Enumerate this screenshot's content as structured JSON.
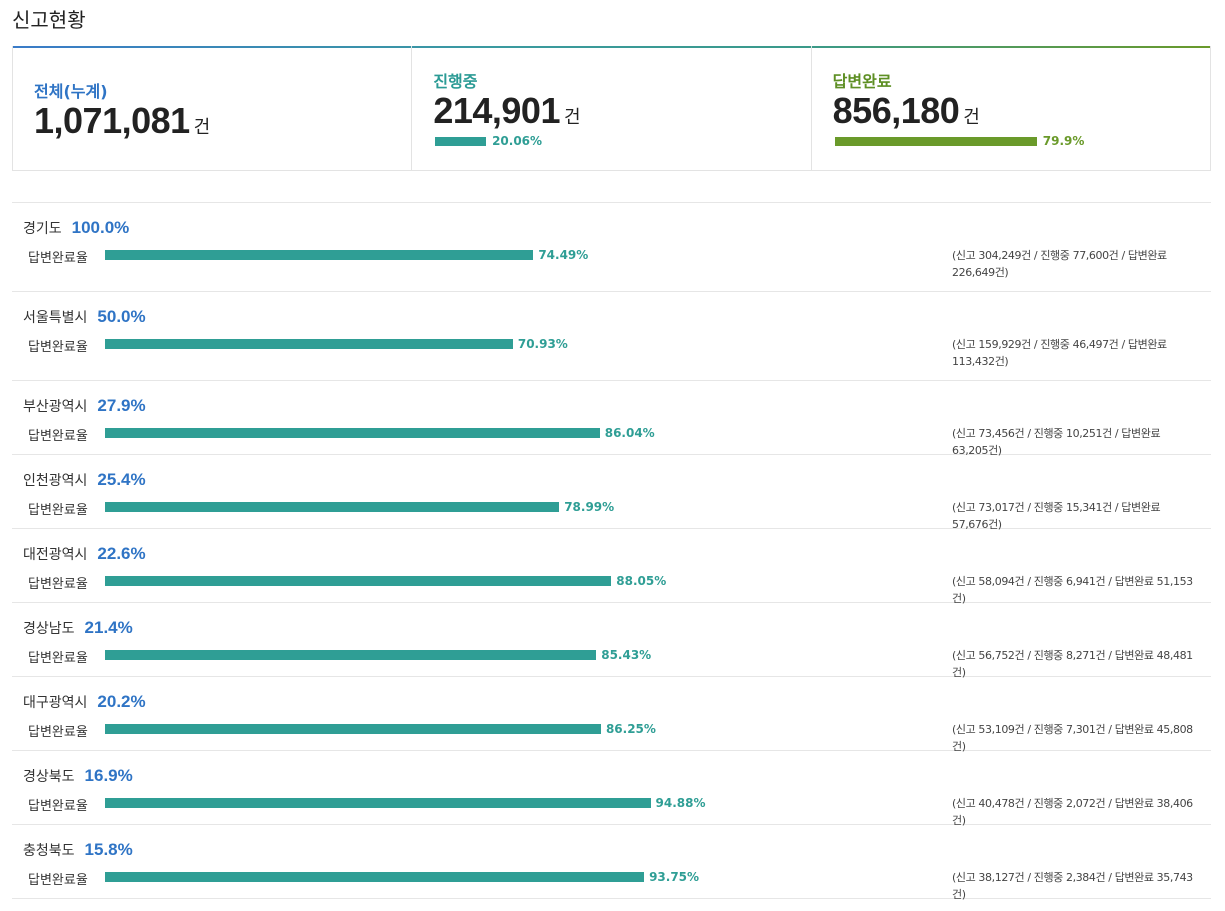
{
  "page_title": "신고현황",
  "summary": {
    "total": {
      "label": "전체(누계)",
      "value": "1,071,081",
      "unit": "건"
    },
    "in_progress": {
      "label": "진행중",
      "value": "214,901",
      "unit": "건",
      "percent_label": "20.06%",
      "percent": 20.06,
      "color": "#2f9e95"
    },
    "completed": {
      "label": "답변완료",
      "value": "856,180",
      "unit": "건",
      "percent_label": "79.9%",
      "percent": 79.9,
      "color": "#6a9a2a"
    }
  },
  "rate_label": "답변완료율",
  "regions": [
    {
      "name": "경기도",
      "share": "100.0%",
      "rate": 74.49,
      "rate_label": "74.49%",
      "detail": "(신고 304,249건 / 진행중 77,600건 / 답변완료 226,649건)"
    },
    {
      "name": "서울특별시",
      "share": "50.0%",
      "rate": 70.93,
      "rate_label": "70.93%",
      "detail": "(신고 159,929건 / 진행중 46,497건 / 답변완료 113,432건)"
    },
    {
      "name": "부산광역시",
      "share": "27.9%",
      "rate": 86.04,
      "rate_label": "86.04%",
      "detail": "(신고 73,456건 / 진행중 10,251건 / 답변완료 63,205건)"
    },
    {
      "name": "인천광역시",
      "share": "25.4%",
      "rate": 78.99,
      "rate_label": "78.99%",
      "detail": "(신고 73,017건 / 진행중 15,341건 / 답변완료 57,676건)"
    },
    {
      "name": "대전광역시",
      "share": "22.6%",
      "rate": 88.05,
      "rate_label": "88.05%",
      "detail": "(신고 58,094건 / 진행중 6,941건 / 답변완료 51,153건)"
    },
    {
      "name": "경상남도",
      "share": "21.4%",
      "rate": 85.43,
      "rate_label": "85.43%",
      "detail": "(신고 56,752건 / 진행중 8,271건 / 답변완료 48,481건)"
    },
    {
      "name": "대구광역시",
      "share": "20.2%",
      "rate": 86.25,
      "rate_label": "86.25%",
      "detail": "(신고 53,109건 / 진행중 7,301건 / 답변완료 45,808건)"
    },
    {
      "name": "경상북도",
      "share": "16.9%",
      "rate": 94.88,
      "rate_label": "94.88%",
      "detail": "(신고 40,478건 / 진행중 2,072건 / 답변완료 38,406건)"
    },
    {
      "name": "충청북도",
      "share": "15.8%",
      "rate": 93.75,
      "rate_label": "93.75%",
      "detail": "(신고 38,127건 / 진행중 2,384건 / 답변완료 35,743건)"
    }
  ]
}
